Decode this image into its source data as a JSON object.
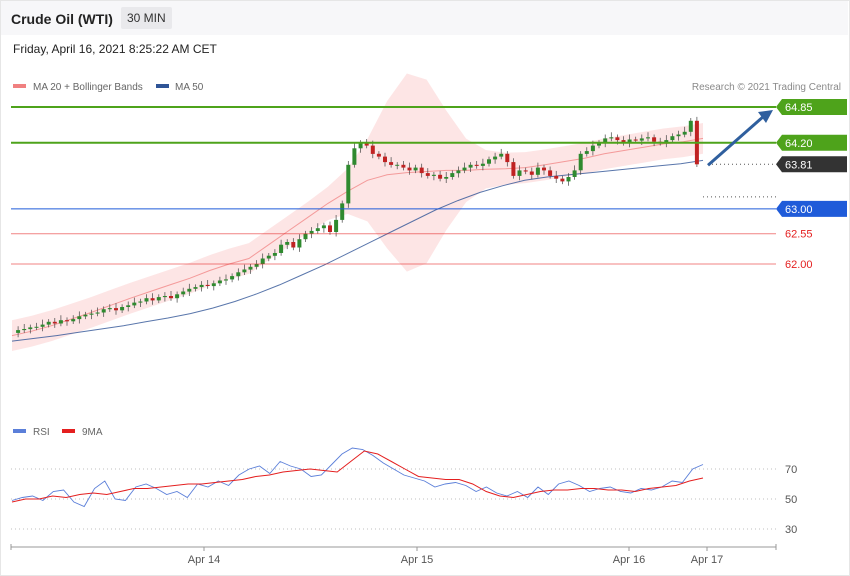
{
  "header": {
    "title": "Crude Oil (WTI)",
    "timeframe": "30 MIN",
    "datetime": "Friday, April 16, 2021 8:25:22 AM CET"
  },
  "price_legend": [
    {
      "label": "MA 20 + Bollinger Bands",
      "color": "#f08080"
    },
    {
      "label": "MA 50",
      "color": "#2f5496"
    }
  ],
  "copyright": "Research © 2021 Trading Central",
  "rsi_legend": [
    {
      "label": "RSI",
      "color": "#5b7fd9"
    },
    {
      "label": "9MA",
      "color": "#e41f1f"
    }
  ],
  "colors": {
    "resistance": "#4ea31b",
    "pivot": "#1f5bd9",
    "support": "#e41f1f",
    "last": "#333333",
    "arrow": "#2f5f9e",
    "band_fill": "#fde0e0",
    "up_candle": "#2f8a2f",
    "down_candle": "#c02222"
  },
  "chart_data": [
    {
      "type": "candlestick",
      "ylim": [
        61.0,
        65.2
      ],
      "levels": [
        {
          "label": "64.85",
          "value": 64.85,
          "kind": "resistance"
        },
        {
          "label": "64.20",
          "value": 64.2,
          "kind": "resistance"
        },
        {
          "label": "63.81",
          "value": 63.81,
          "kind": "last"
        },
        {
          "label": "63.00",
          "value": 63.0,
          "kind": "pivot"
        },
        {
          "label": "62.55",
          "value": 62.55,
          "kind": "support"
        },
        {
          "label": "62.00",
          "value": 62.0,
          "kind": "support"
        }
      ],
      "x_ticks": [
        "Apr 14",
        "Apr 15",
        "Apr 16",
        "Apr 17"
      ],
      "close_path": [
        60.75,
        60.8,
        60.82,
        60.85,
        60.86,
        60.9,
        60.95,
        60.92,
        60.98,
        60.96,
        61.0,
        61.05,
        61.08,
        61.1,
        61.12,
        61.18,
        61.2,
        61.16,
        61.22,
        61.25,
        61.3,
        61.32,
        61.38,
        61.34,
        61.4,
        61.42,
        61.38,
        61.45,
        61.5,
        61.55,
        61.58,
        61.62,
        61.6,
        61.65,
        61.7,
        61.72,
        61.78,
        61.85,
        61.9,
        61.95,
        62.0,
        62.1,
        62.15,
        62.2,
        62.35,
        62.4,
        62.3,
        62.45,
        62.55,
        62.6,
        62.65,
        62.7,
        62.58,
        62.8,
        63.1,
        63.8,
        64.1,
        64.2,
        64.15,
        64.0,
        63.95,
        63.85,
        63.8,
        63.8,
        63.75,
        63.7,
        63.75,
        63.65,
        63.6,
        63.62,
        63.55,
        63.58,
        63.65,
        63.7,
        63.75,
        63.8,
        63.78,
        63.82,
        63.9,
        63.95,
        64.0,
        63.85,
        63.6,
        63.7,
        63.68,
        63.62,
        63.75,
        63.7,
        63.6,
        63.55,
        63.5,
        63.58,
        63.7,
        64.0,
        64.05,
        64.15,
        64.2,
        64.28,
        64.3,
        64.25,
        64.2,
        64.26,
        64.24,
        64.28,
        64.3,
        64.22,
        64.2,
        64.25,
        64.32,
        64.35,
        64.4,
        64.6,
        63.81
      ],
      "ma20_path": [
        60.7,
        60.78,
        60.88,
        61.0,
        61.12,
        61.25,
        61.38,
        61.5,
        61.62,
        61.74,
        61.88,
        62.0,
        62.1,
        62.35,
        62.6,
        62.85,
        63.1,
        63.32,
        63.52,
        63.62,
        63.66,
        63.68,
        63.7,
        63.7,
        63.72,
        63.73,
        63.75,
        63.8,
        63.86,
        63.92,
        64.0,
        64.06,
        64.12,
        64.18,
        64.22,
        64.28
      ],
      "ma50_path": [
        60.6,
        60.65,
        60.7,
        60.76,
        60.82,
        60.88,
        60.95,
        61.02,
        61.1,
        61.2,
        61.32,
        61.46,
        61.62,
        61.8,
        61.98,
        62.18,
        62.38,
        62.58,
        62.78,
        62.98,
        63.15,
        63.3,
        63.42,
        63.52,
        63.58,
        63.62,
        63.66,
        63.7,
        63.74,
        63.78,
        63.82,
        63.88
      ]
    },
    {
      "type": "line",
      "name": "RSI",
      "ylim": [
        20,
        90
      ],
      "y_ticks": [
        "70",
        "50",
        "30"
      ],
      "rsi_path": [
        49,
        51,
        52,
        49,
        55,
        56,
        48,
        45,
        57,
        62,
        50,
        49,
        58,
        60,
        57,
        53,
        55,
        51,
        60,
        58,
        62,
        59,
        66,
        70,
        72,
        67,
        75,
        72,
        70,
        65,
        66,
        73,
        80,
        84,
        83,
        79,
        74,
        70,
        66,
        64,
        62,
        58,
        60,
        61,
        59,
        55,
        58,
        54,
        52,
        55,
        51,
        58,
        53,
        60,
        62,
        59,
        55,
        57,
        58,
        55,
        54,
        57,
        56,
        58,
        62,
        61,
        70,
        73
      ],
      "ma9_path": [
        48,
        50,
        50,
        52,
        51,
        53,
        54,
        53,
        55,
        57,
        57,
        58,
        59,
        60,
        60,
        61,
        62,
        63,
        65,
        66,
        68,
        69,
        70,
        69,
        68,
        75,
        82,
        80,
        75,
        70,
        65,
        64,
        63,
        63,
        60,
        55,
        52,
        51,
        53,
        55,
        56,
        56,
        57,
        57,
        56,
        56,
        55,
        57,
        58,
        59,
        62,
        64
      ]
    }
  ]
}
